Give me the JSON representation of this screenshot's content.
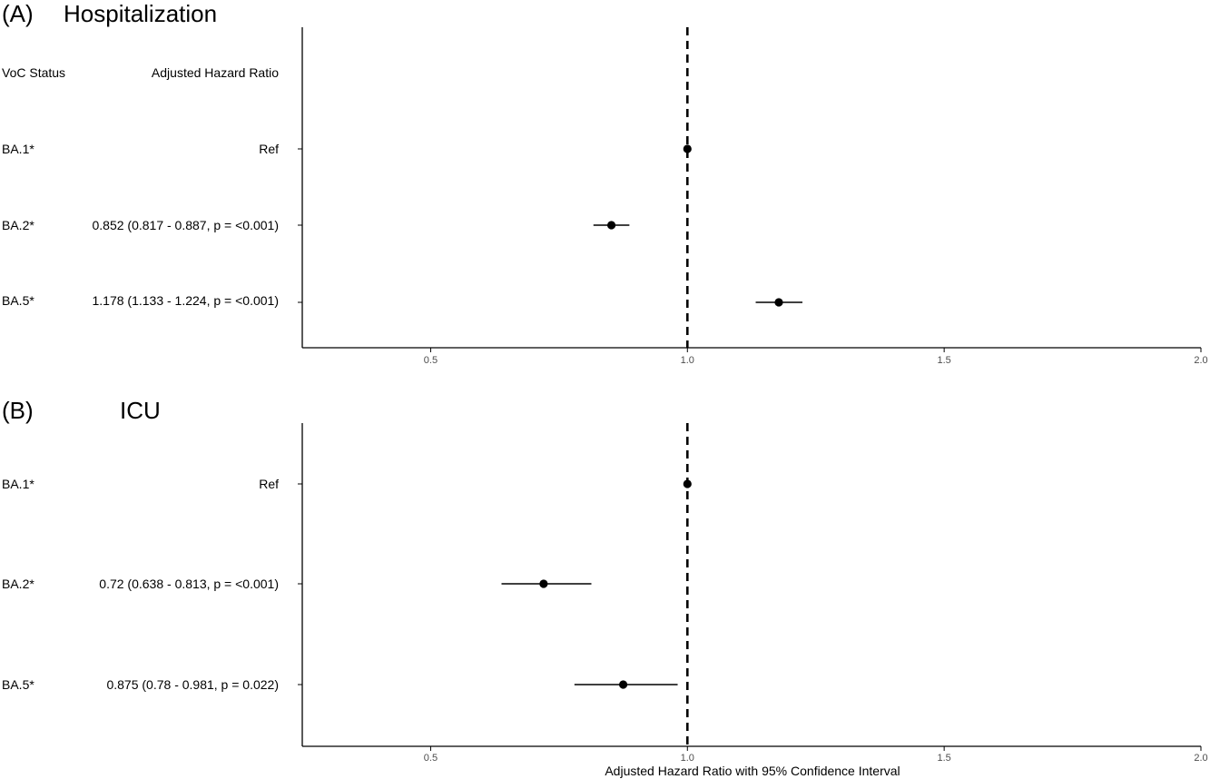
{
  "chart_data": [
    {
      "type": "forest",
      "panel_letter": "(A)",
      "title": "Hospitalization",
      "column_headers": {
        "label": "VoC Status",
        "value": "Adjusted Hazard Ratio"
      },
      "rows": [
        {
          "label": "BA.1*",
          "text": "Ref",
          "estimate": 1.0,
          "lower": 1.0,
          "upper": 1.0
        },
        {
          "label": "BA.2*",
          "text": "0.852 (0.817 - 0.887, p = <0.001)",
          "estimate": 0.852,
          "lower": 0.817,
          "upper": 0.887
        },
        {
          "label": "BA.5*",
          "text": "1.178 (1.133 - 1.224, p = <0.001)",
          "estimate": 1.178,
          "lower": 1.133,
          "upper": 1.224
        }
      ],
      "reference_line": 1.0,
      "xlim": [
        0.25,
        2.0
      ],
      "x_ticks": [
        0.5,
        1.0,
        1.5,
        2.0
      ],
      "x_tick_labels": [
        "0.5",
        "1.0",
        "1.5",
        "2.0"
      ],
      "xlabel": ""
    },
    {
      "type": "forest",
      "panel_letter": "(B)",
      "title": "ICU",
      "column_headers": {
        "label": "",
        "value": ""
      },
      "rows": [
        {
          "label": "BA.1*",
          "text": "Ref",
          "estimate": 1.0,
          "lower": 1.0,
          "upper": 1.0
        },
        {
          "label": "BA.2*",
          "text": "0.72 (0.638 - 0.813, p = <0.001)",
          "estimate": 0.72,
          "lower": 0.638,
          "upper": 0.813
        },
        {
          "label": "BA.5*",
          "text": "0.875 (0.78 - 0.981, p = 0.022)",
          "estimate": 0.875,
          "lower": 0.78,
          "upper": 0.981
        }
      ],
      "reference_line": 1.0,
      "xlim": [
        0.25,
        2.0
      ],
      "x_ticks": [
        0.5,
        1.0,
        1.5,
        2.0
      ],
      "x_tick_labels": [
        "0.5",
        "1.0",
        "1.5",
        "2.0"
      ],
      "xlabel": "Adjusted Hazard Ratio with 95% Confidence Interval"
    }
  ]
}
